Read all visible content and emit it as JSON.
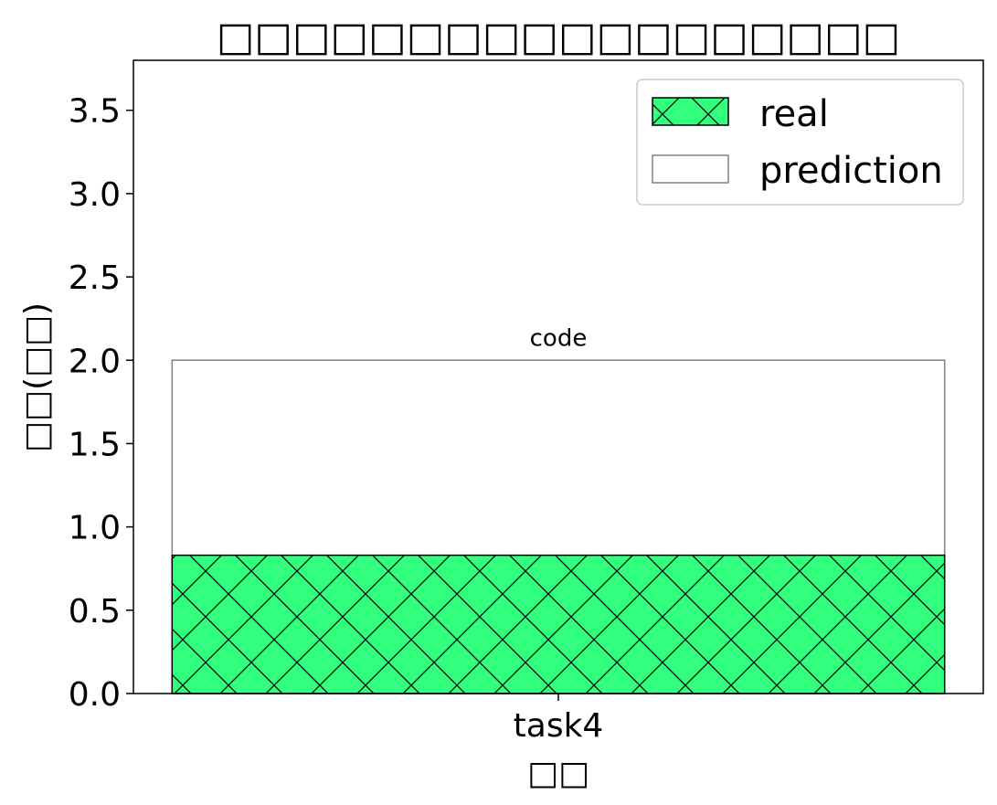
{
  "chart_data": {
    "type": "bar",
    "title": "□□□□□□□□□□□□□□□□□□",
    "xlabel": "□□",
    "ylabel": "□□(□□)",
    "categories": [
      "task4"
    ],
    "series": [
      {
        "name": "prediction",
        "values": [
          2.0
        ],
        "fill": "#ffffff",
        "edge": "#808080",
        "hatch": "none"
      },
      {
        "name": "real",
        "values": [
          0.83
        ],
        "fill": "#33ff7f",
        "edge": "#000000",
        "hatch": "x"
      }
    ],
    "bar_annotations": [
      "code"
    ],
    "ylim": [
      0,
      3.8
    ],
    "yticks": [
      0.0,
      0.5,
      1.0,
      1.5,
      2.0,
      2.5,
      3.0,
      3.5
    ],
    "ytick_labels": [
      "0.0",
      "0.5",
      "1.0",
      "1.5",
      "2.0",
      "2.5",
      "3.0",
      "3.5"
    ],
    "legend": {
      "placement": "top-right",
      "entries": [
        "real",
        "prediction"
      ]
    },
    "grid": false
  }
}
